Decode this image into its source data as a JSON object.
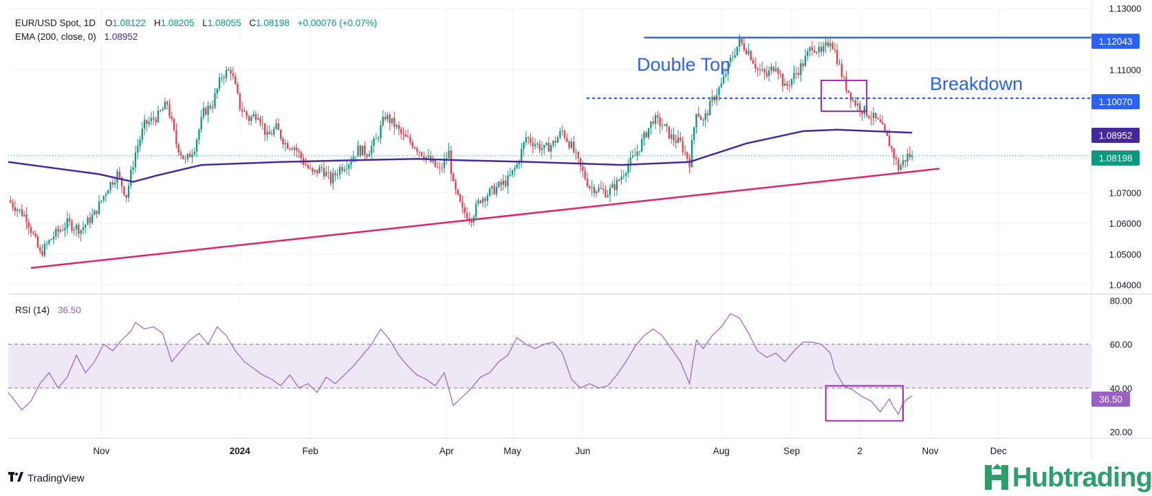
{
  "header": {
    "symbol": "EUR/USD Spot, 1D",
    "o_label": "O",
    "o": "1.08122",
    "h_label": "H",
    "h": "1.08205",
    "l_label": "L",
    "l": "1.08055",
    "c_label": "C",
    "c": "1.08198",
    "change": "+0.00076 (+0.07%)",
    "ema_label": "EMA (200, close, 0)",
    "ema_value": "1.08952",
    "rsi_label": "RSI (14)",
    "rsi_value": "36.50"
  },
  "annotations": {
    "double_top": "Double Top",
    "breakdown": "Breakdown"
  },
  "price_badges": {
    "resistance": "1.12043",
    "neckline": "1.10070",
    "ema": "1.08952",
    "last": "1.08198",
    "rsi": "36.50"
  },
  "colors": {
    "up": "#089981",
    "down": "#f23645",
    "ema": "#4527a0",
    "trendline": "#e91e63",
    "level": "#2962ff",
    "rsi": "#9c5fc5",
    "rsi_band": "#ede7f6",
    "grid": "#f0f3fa",
    "text": "#131722"
  },
  "footer": {
    "brand": "TradingView",
    "logo_icon": "tradingview-logo-icon"
  },
  "watermark": {
    "text": "Hubtrading",
    "icon": "hubtrading-logo-icon"
  },
  "chart_data": [
    {
      "type": "candlestick",
      "title": "EUR/USD Spot, 1D",
      "y_ticks": [
        "1.13000",
        "1.11000",
        "1.07000",
        "1.06000",
        "1.05000",
        "1.04000"
      ],
      "ylim": [
        1.037,
        1.13
      ],
      "x_ticks": [
        "Nov",
        "2024",
        "Feb",
        "Apr",
        "May",
        "Jun",
        "Aug",
        "Sep",
        "2",
        "Nov",
        "Dec"
      ],
      "x_tick_days": [
        41,
        102,
        133,
        193,
        222,
        253,
        314,
        345,
        375,
        406,
        436
      ],
      "xlim": [
        0,
        477
      ],
      "ohlc_close_path": [
        [
          0,
          1.0675
        ],
        [
          8,
          1.062
        ],
        [
          14,
          1.05
        ],
        [
          20,
          1.056
        ],
        [
          26,
          1.06
        ],
        [
          32,
          1.058
        ],
        [
          38,
          1.063
        ],
        [
          44,
          1.072
        ],
        [
          48,
          1.076
        ],
        [
          52,
          1.069
        ],
        [
          56,
          1.083
        ],
        [
          60,
          1.092
        ],
        [
          66,
          1.095
        ],
        [
          70,
          1.099
        ],
        [
          74,
          1.086
        ],
        [
          78,
          1.08
        ],
        [
          82,
          1.085
        ],
        [
          86,
          1.096
        ],
        [
          90,
          1.099
        ],
        [
          94,
          1.108
        ],
        [
          98,
          1.11
        ],
        [
          102,
          1.098
        ],
        [
          106,
          1.094
        ],
        [
          110,
          1.096
        ],
        [
          114,
          1.088
        ],
        [
          118,
          1.091
        ],
        [
          122,
          1.086
        ],
        [
          126,
          1.085
        ],
        [
          130,
          1.08
        ],
        [
          134,
          1.076
        ],
        [
          138,
          1.078
        ],
        [
          142,
          1.074
        ],
        [
          146,
          1.078
        ],
        [
          150,
          1.08
        ],
        [
          154,
          1.084
        ],
        [
          158,
          1.083
        ],
        [
          162,
          1.087
        ],
        [
          166,
          1.095
        ],
        [
          170,
          1.092
        ],
        [
          174,
          1.088
        ],
        [
          178,
          1.086
        ],
        [
          182,
          1.083
        ],
        [
          186,
          1.08
        ],
        [
          190,
          1.077
        ],
        [
          194,
          1.083
        ],
        [
          196,
          1.072
        ],
        [
          200,
          1.064
        ],
        [
          204,
          1.062
        ],
        [
          208,
          1.068
        ],
        [
          212,
          1.07
        ],
        [
          216,
          1.072
        ],
        [
          220,
          1.074
        ],
        [
          224,
          1.079
        ],
        [
          228,
          1.088
        ],
        [
          232,
          1.086
        ],
        [
          236,
          1.084
        ],
        [
          240,
          1.086
        ],
        [
          244,
          1.09
        ],
        [
          248,
          1.085
        ],
        [
          252,
          1.078
        ],
        [
          256,
          1.072
        ],
        [
          260,
          1.071
        ],
        [
          264,
          1.07
        ],
        [
          268,
          1.073
        ],
        [
          272,
          1.078
        ],
        [
          276,
          1.082
        ],
        [
          280,
          1.088
        ],
        [
          284,
          1.094
        ],
        [
          288,
          1.092
        ],
        [
          292,
          1.088
        ],
        [
          296,
          1.086
        ],
        [
          300,
          1.08
        ],
        [
          303,
          1.097
        ],
        [
          306,
          1.093
        ],
        [
          310,
          1.1
        ],
        [
          314,
          1.105
        ],
        [
          318,
          1.113
        ],
        [
          322,
          1.119
        ],
        [
          326,
          1.116
        ],
        [
          330,
          1.11
        ],
        [
          334,
          1.108
        ],
        [
          338,
          1.112
        ],
        [
          342,
          1.104
        ],
        [
          346,
          1.108
        ],
        [
          350,
          1.112
        ],
        [
          354,
          1.118
        ],
        [
          358,
          1.115
        ],
        [
          362,
          1.12
        ],
        [
          364,
          1.116
        ],
        [
          368,
          1.106
        ],
        [
          372,
          1.1
        ],
        [
          376,
          1.097
        ],
        [
          380,
          1.095
        ],
        [
          384,
          1.092
        ],
        [
          388,
          1.086
        ],
        [
          390,
          1.082
        ],
        [
          392,
          1.078
        ],
        [
          394,
          1.08
        ],
        [
          396,
          1.082
        ],
        [
          398,
          1.082
        ]
      ],
      "last_close": 1.08198,
      "ema_200": [
        [
          0,
          1.08
        ],
        [
          40,
          1.076
        ],
        [
          55,
          1.0735
        ],
        [
          65,
          1.0755
        ],
        [
          85,
          1.079
        ],
        [
          120,
          1.08
        ],
        [
          180,
          1.081
        ],
        [
          200,
          1.0805
        ],
        [
          230,
          1.08
        ],
        [
          270,
          1.079
        ],
        [
          300,
          1.08
        ],
        [
          325,
          1.086
        ],
        [
          350,
          1.09
        ],
        [
          365,
          1.0905
        ],
        [
          380,
          1.09
        ],
        [
          398,
          1.08952
        ]
      ],
      "levels": [
        {
          "name": "resistance",
          "value": 1.12043,
          "style": "solid",
          "x_from": 280
        },
        {
          "name": "neckline",
          "value": 1.1007,
          "style": "dotted",
          "x_from": 255
        }
      ],
      "trendline": [
        [
          10,
          1.0455
        ],
        [
          410,
          1.0778
        ]
      ],
      "breakdown_box": {
        "x": [
          358,
          378
        ],
        "y": [
          1.0965,
          1.1065
        ]
      }
    },
    {
      "type": "line",
      "title": "RSI (14)",
      "y_ticks": [
        "80.00",
        "60.00",
        "40.00",
        "20.00"
      ],
      "ylim": [
        17,
        83
      ],
      "band": [
        40,
        60
      ],
      "values": [
        [
          0,
          38
        ],
        [
          6,
          30
        ],
        [
          10,
          34
        ],
        [
          14,
          42
        ],
        [
          18,
          47
        ],
        [
          22,
          40
        ],
        [
          26,
          45
        ],
        [
          30,
          55
        ],
        [
          34,
          47
        ],
        [
          38,
          52
        ],
        [
          42,
          60
        ],
        [
          46,
          57
        ],
        [
          50,
          62
        ],
        [
          54,
          66
        ],
        [
          56,
          70
        ],
        [
          60,
          67
        ],
        [
          64,
          68
        ],
        [
          68,
          65
        ],
        [
          72,
          52
        ],
        [
          76,
          57
        ],
        [
          80,
          62
        ],
        [
          84,
          65
        ],
        [
          88,
          60
        ],
        [
          92,
          68
        ],
        [
          96,
          64
        ],
        [
          100,
          57
        ],
        [
          104,
          52
        ],
        [
          108,
          49
        ],
        [
          112,
          46
        ],
        [
          116,
          44
        ],
        [
          120,
          41
        ],
        [
          124,
          46
        ],
        [
          128,
          40
        ],
        [
          132,
          42
        ],
        [
          136,
          38
        ],
        [
          140,
          45
        ],
        [
          144,
          42
        ],
        [
          148,
          46
        ],
        [
          152,
          50
        ],
        [
          156,
          55
        ],
        [
          160,
          60
        ],
        [
          164,
          67
        ],
        [
          168,
          62
        ],
        [
          172,
          55
        ],
        [
          176,
          50
        ],
        [
          180,
          46
        ],
        [
          184,
          44
        ],
        [
          188,
          41
        ],
        [
          192,
          47
        ],
        [
          196,
          32
        ],
        [
          200,
          36
        ],
        [
          204,
          40
        ],
        [
          208,
          45
        ],
        [
          212,
          47
        ],
        [
          216,
          52
        ],
        [
          220,
          55
        ],
        [
          224,
          63
        ],
        [
          228,
          60
        ],
        [
          232,
          58
        ],
        [
          236,
          60
        ],
        [
          240,
          61
        ],
        [
          244,
          56
        ],
        [
          248,
          44
        ],
        [
          252,
          40
        ],
        [
          256,
          42
        ],
        [
          260,
          40
        ],
        [
          264,
          41
        ],
        [
          268,
          46
        ],
        [
          272,
          52
        ],
        [
          276,
          59
        ],
        [
          280,
          64
        ],
        [
          284,
          67
        ],
        [
          288,
          64
        ],
        [
          292,
          58
        ],
        [
          296,
          52
        ],
        [
          300,
          42
        ],
        [
          303,
          62
        ],
        [
          306,
          58
        ],
        [
          310,
          64
        ],
        [
          314,
          68
        ],
        [
          318,
          74
        ],
        [
          322,
          72
        ],
        [
          326,
          65
        ],
        [
          330,
          57
        ],
        [
          334,
          54
        ],
        [
          338,
          56
        ],
        [
          342,
          52
        ],
        [
          346,
          57
        ],
        [
          350,
          61
        ],
        [
          354,
          61
        ],
        [
          358,
          60
        ],
        [
          362,
          56
        ],
        [
          364,
          48
        ],
        [
          368,
          41
        ],
        [
          372,
          39
        ],
        [
          376,
          36
        ],
        [
          380,
          34
        ],
        [
          384,
          29
        ],
        [
          388,
          35
        ],
        [
          390,
          31
        ],
        [
          392,
          28
        ],
        [
          394,
          33
        ],
        [
          396,
          35
        ],
        [
          398,
          36.5
        ]
      ],
      "highlight_box": {
        "x": [
          360,
          394
        ],
        "y": [
          25,
          41
        ]
      }
    }
  ]
}
